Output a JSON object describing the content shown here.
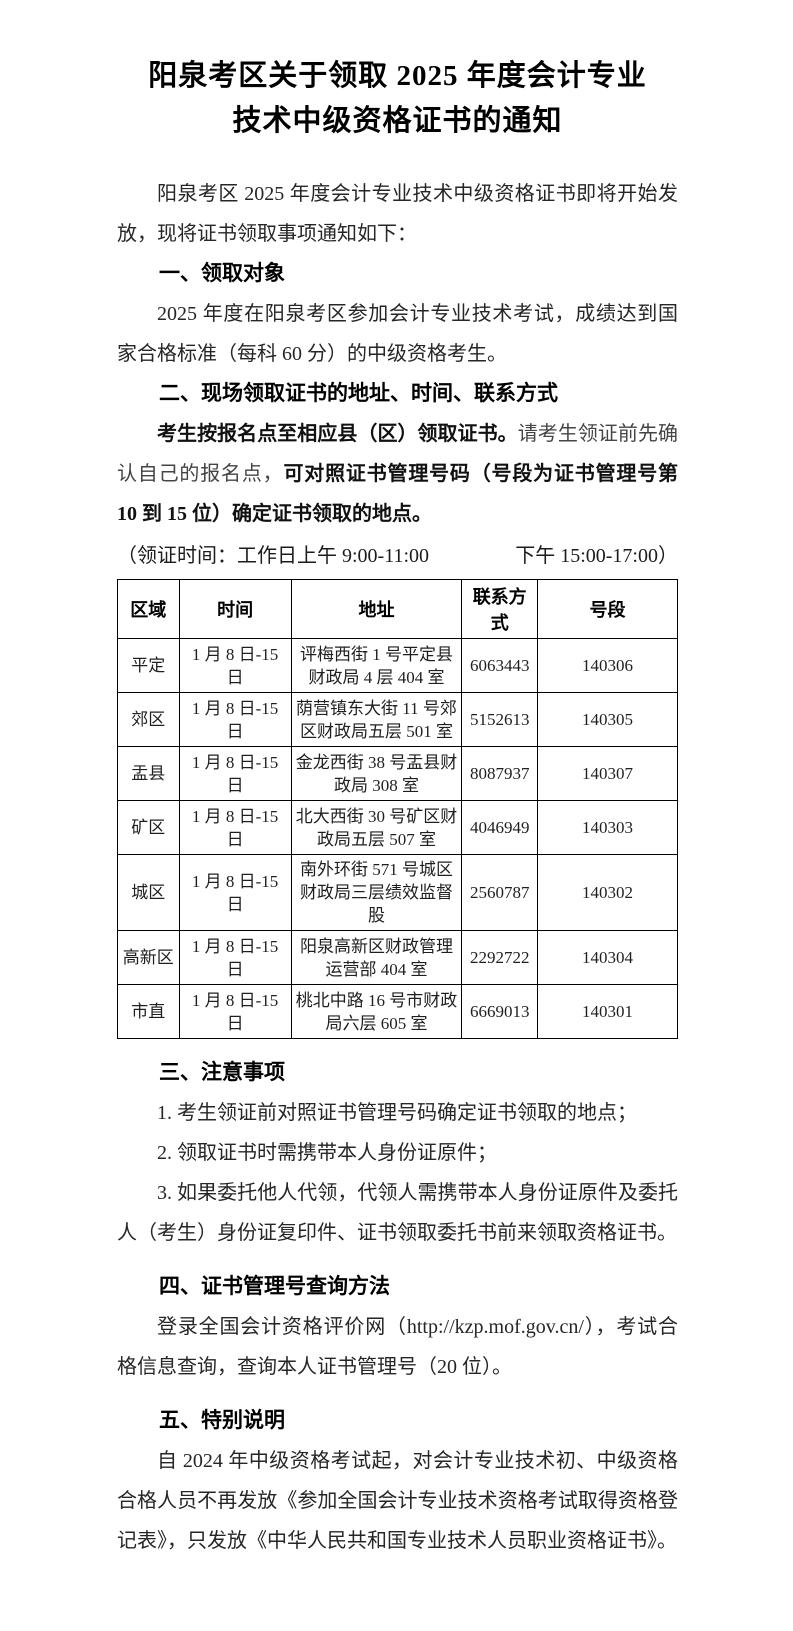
{
  "doc": {
    "title_line1": "阳泉考区关于领取 2025 年度会计专业",
    "title_line2": "技术中级资格证书的通知",
    "intro": "阳泉考区 2025 年度会计专业技术中级资格证书即将开始发放，现将证书领取事项通知如下："
  },
  "sections": {
    "s1": {
      "heading": "一、领取对象",
      "body": "2025 年度在阳泉考区参加会计专业技术考试，成绩达到国家合格标准（每科 60 分）的中级资格考生。"
    },
    "s2": {
      "heading": "二、现场领取证书的地址、时间、联系方式",
      "bold1": "考生按报名点至相应县（区）领取证书。",
      "regular": "请考生领证前先确认自己的报名点，",
      "bold2": "可对照证书管理号码（号段为证书管理号第 10 到 15 位）确定证书领取的地点。"
    },
    "s3": {
      "heading": "三、注意事项",
      "items": [
        "1. 考生领证前对照证书管理号码确定证书领取的地点；",
        "2. 领取证书时需携带本人身份证原件；",
        "3. 如果委托他人代领，代领人需携带本人身份证原件及委托人（考生）身份证复印件、证书领取委托书前来领取资格证书。"
      ]
    },
    "s4": {
      "heading": "四、证书管理号查询方法",
      "body": "登录全国会计资格评价网（http://kzp.mof.gov.cn/），考试合格信息查询，查询本人证书管理号（20 位）。"
    },
    "s5": {
      "heading": "五、特别说明",
      "body": "自 2024 年中级资格考试起，对会计专业技术初、中级资格合格人员不再发放《参加全国会计专业技术资格考试取得资格登记表》，只发放《中华人民共和国专业技术人员职业资格证书》。"
    }
  },
  "pickup_time": {
    "morning": "（领证时间：工作日上午 9:00-11:00",
    "afternoon": "下午 15:00-17:00）"
  },
  "table": {
    "headers": [
      "区域",
      "时间",
      "地址",
      "联系方式",
      "号段"
    ],
    "rows": [
      {
        "region": "平定",
        "time": "1 月 8 日-15 日",
        "address": "评梅西街 1 号平定县财政局 4 层 404 室",
        "contact": "6063443",
        "segment": "140306"
      },
      {
        "region": "郊区",
        "time": "1 月 8 日-15 日",
        "address": "荫营镇东大街 11 号郊区财政局五层 501 室",
        "contact": "5152613",
        "segment": "140305"
      },
      {
        "region": "盂县",
        "time": "1 月 8 日-15 日",
        "address": "金龙西街 38 号盂县财政局 308 室",
        "contact": "8087937",
        "segment": "140307"
      },
      {
        "region": "矿区",
        "time": "1 月 8 日-15 日",
        "address": "北大西街 30 号矿区财政局五层 507 室",
        "contact": "4046949",
        "segment": "140303"
      },
      {
        "region": "城区",
        "time": "1 月 8 日-15 日",
        "address": "南外环街 571 号城区财政局三层绩效监督股",
        "contact": "2560787",
        "segment": "140302"
      },
      {
        "region": "高新区",
        "time": "1 月 8 日-15 日",
        "address": "阳泉高新区财政管理运营部 404 室",
        "contact": "2292722",
        "segment": "140304"
      },
      {
        "region": "市直",
        "time": "1 月 8 日-15 日",
        "address": "桃北中路 16 号市财政局六层 605 室",
        "contact": "6669013",
        "segment": "140301"
      }
    ]
  }
}
